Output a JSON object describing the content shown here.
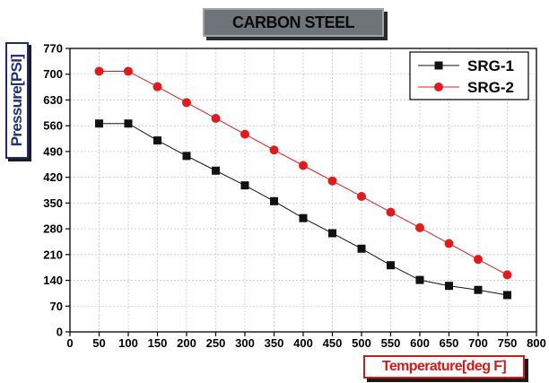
{
  "chart_data": {
    "type": "line",
    "title": "CARBON STEEL",
    "xlabel": "Temperature[deg F]",
    "ylabel": "Pressure[PSI]",
    "xlim": [
      0,
      800
    ],
    "ylim": [
      0,
      770
    ],
    "x_ticks": [
      0,
      50,
      100,
      150,
      200,
      250,
      300,
      350,
      400,
      450,
      500,
      550,
      600,
      650,
      700,
      750,
      800
    ],
    "y_ticks": [
      0,
      70,
      140,
      210,
      280,
      350,
      420,
      490,
      560,
      630,
      700,
      770
    ],
    "grid": true,
    "legend_position": "top-right",
    "x": [
      50,
      100,
      150,
      200,
      250,
      300,
      350,
      400,
      450,
      500,
      550,
      600,
      650,
      700,
      750
    ],
    "series": [
      {
        "name": "SRG-1",
        "marker": "square",
        "color": "#111111",
        "values": [
          566,
          566,
          520,
          478,
          438,
          398,
          355,
          309,
          268,
          226,
          181,
          141,
          125,
          114,
          100
        ]
      },
      {
        "name": "SRG-2",
        "marker": "circle",
        "color": "#e01b1b",
        "values": [
          708,
          708,
          666,
          623,
          580,
          537,
          494,
          452,
          410,
          368,
          325,
          283,
          240,
          197,
          155
        ]
      }
    ]
  }
}
